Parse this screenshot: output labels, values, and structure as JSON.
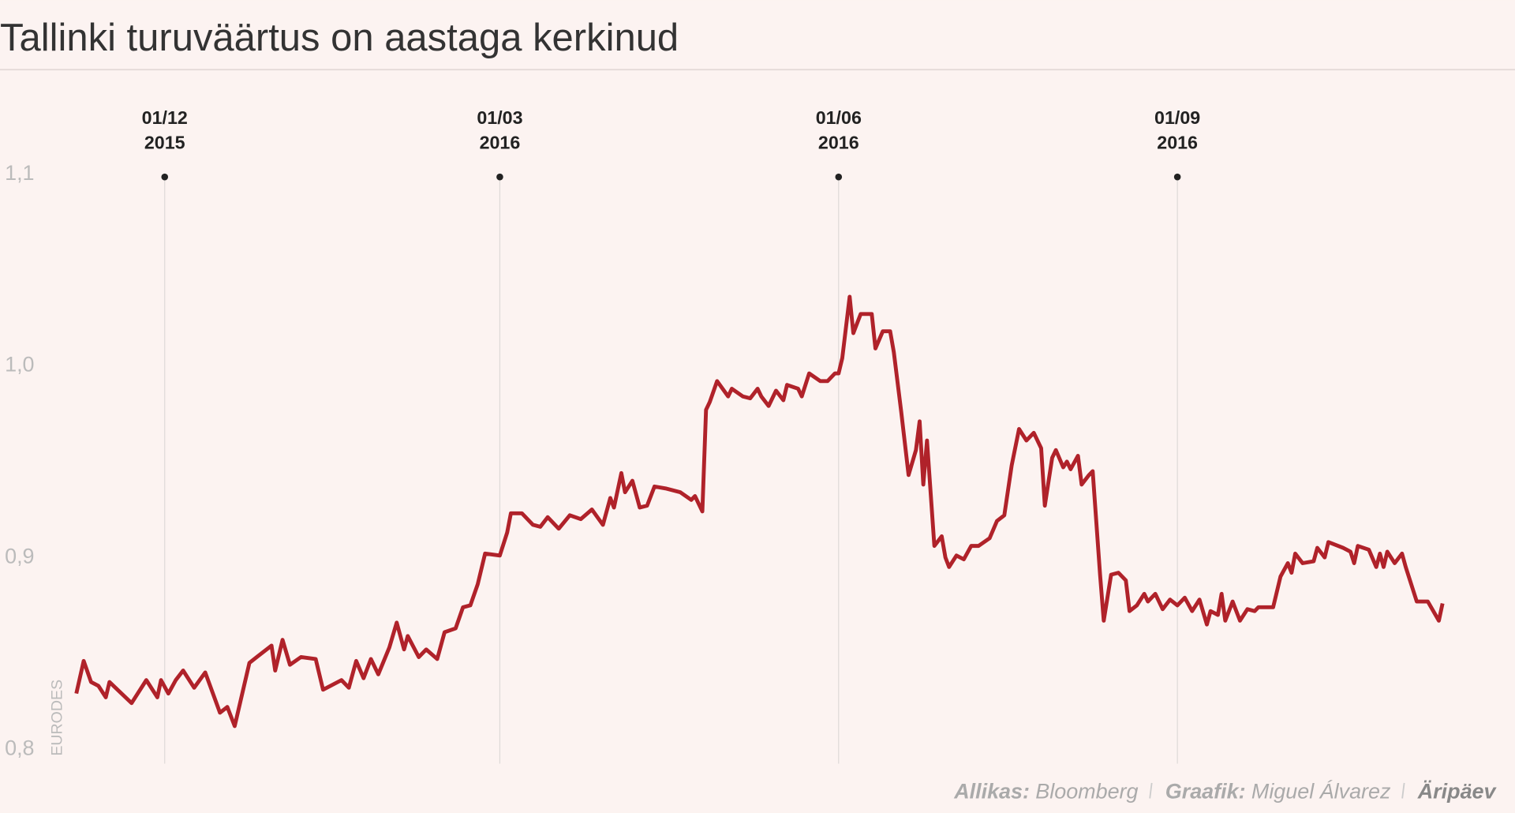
{
  "chart_data": {
    "type": "line",
    "title": "Tallinki turuväärtus on aastaga kerkinud",
    "y_label": "EURODES",
    "color": "#b0222a",
    "x": [
      "2015-11-07",
      "2015-11-09",
      "2015-11-11",
      "2015-11-13",
      "2015-11-15",
      "2015-11-16",
      "2015-11-22",
      "2015-11-26",
      "2015-11-29",
      "2015-11-30",
      "2015-12-02",
      "2015-12-04",
      "2015-12-06",
      "2015-12-09",
      "2015-12-12",
      "2015-12-16",
      "2015-12-18",
      "2015-12-20",
      "2015-12-24",
      "2015-12-26",
      "2015-12-30",
      "2015-12-31",
      "2016-01-02",
      "2016-01-04",
      "2016-01-07",
      "2016-01-11",
      "2016-01-13",
      "2016-01-18",
      "2016-01-20",
      "2016-01-22",
      "2016-01-24",
      "2016-01-26",
      "2016-01-28",
      "2016-01-31",
      "2016-02-02",
      "2016-02-04",
      "2016-02-05",
      "2016-02-08",
      "2016-02-10",
      "2016-02-13",
      "2016-02-15",
      "2016-02-18",
      "2016-02-20",
      "2016-02-22",
      "2016-02-24",
      "2016-02-26",
      "2016-03-01",
      "2016-03-03",
      "2016-03-04",
      "2016-03-07",
      "2016-03-10",
      "2016-03-12",
      "2016-03-14",
      "2016-03-17",
      "2016-03-20",
      "2016-03-23",
      "2016-03-26",
      "2016-03-29",
      "2016-03-31",
      "2016-04-01",
      "2016-04-03",
      "2016-04-04",
      "2016-04-06",
      "2016-04-08",
      "2016-04-10",
      "2016-04-12",
      "2016-04-15",
      "2016-04-19",
      "2016-04-22",
      "2016-04-23",
      "2016-04-25",
      "2016-04-26",
      "2016-04-27",
      "2016-04-29",
      "2016-05-02",
      "2016-05-03",
      "2016-05-06",
      "2016-05-08",
      "2016-05-10",
      "2016-05-11",
      "2016-05-13",
      "2016-05-15",
      "2016-05-17",
      "2016-05-18",
      "2016-05-21",
      "2016-05-22",
      "2016-05-24",
      "2016-05-27",
      "2016-05-29",
      "2016-05-31",
      "2016-06-01",
      "2016-06-02",
      "2016-06-04",
      "2016-06-05",
      "2016-06-07",
      "2016-06-10",
      "2016-06-11",
      "2016-06-13",
      "2016-06-15",
      "2016-06-16",
      "2016-06-18",
      "2016-06-20",
      "2016-06-22",
      "2016-06-23",
      "2016-06-24",
      "2016-06-25",
      "2016-06-27",
      "2016-06-29",
      "2016-06-30",
      "2016-07-01",
      "2016-07-03",
      "2016-07-05",
      "2016-07-07",
      "2016-07-09",
      "2016-07-12",
      "2016-07-14",
      "2016-07-16",
      "2016-07-18",
      "2016-07-20",
      "2016-07-22",
      "2016-07-24",
      "2016-07-26",
      "2016-07-27",
      "2016-07-29",
      "2016-07-30",
      "2016-08-01",
      "2016-08-02",
      "2016-08-03",
      "2016-08-05",
      "2016-08-06",
      "2016-08-08",
      "2016-08-09",
      "2016-08-11",
      "2016-08-12",
      "2016-08-14",
      "2016-08-16",
      "2016-08-18",
      "2016-08-19",
      "2016-08-21",
      "2016-08-23",
      "2016-08-24",
      "2016-08-26",
      "2016-08-28",
      "2016-08-30",
      "2016-09-01",
      "2016-09-03",
      "2016-09-05",
      "2016-09-07",
      "2016-09-09",
      "2016-09-10",
      "2016-09-12",
      "2016-09-13",
      "2016-09-14",
      "2016-09-16",
      "2016-09-18",
      "2016-09-20",
      "2016-09-22",
      "2016-09-23",
      "2016-09-27",
      "2016-09-29",
      "2016-10-01",
      "2016-10-02",
      "2016-10-03",
      "2016-10-05",
      "2016-10-08",
      "2016-10-09",
      "2016-10-11",
      "2016-10-12",
      "2016-10-16",
      "2016-10-18",
      "2016-10-19",
      "2016-10-20",
      "2016-10-23",
      "2016-10-25",
      "2016-10-26",
      "2016-10-27",
      "2016-10-28",
      "2016-10-30",
      "2016-11-01",
      "2016-11-02",
      "2016-11-05",
      "2016-11-08",
      "2016-11-11",
      "2016-11-12"
    ],
    "values": [
      0.828,
      0.845,
      0.834,
      0.832,
      0.826,
      0.834,
      0.823,
      0.835,
      0.826,
      0.835,
      0.828,
      0.835,
      0.84,
      0.831,
      0.839,
      0.818,
      0.821,
      0.811,
      0.844,
      0.847,
      0.853,
      0.84,
      0.856,
      0.843,
      0.847,
      0.846,
      0.83,
      0.835,
      0.831,
      0.845,
      0.836,
      0.846,
      0.838,
      0.852,
      0.865,
      0.851,
      0.858,
      0.847,
      0.851,
      0.846,
      0.86,
      0.862,
      0.873,
      0.874,
      0.885,
      0.901,
      0.9,
      0.912,
      0.922,
      0.922,
      0.916,
      0.915,
      0.92,
      0.914,
      0.921,
      0.919,
      0.924,
      0.916,
      0.93,
      0.925,
      0.943,
      0.933,
      0.939,
      0.925,
      0.926,
      0.936,
      0.935,
      0.933,
      0.929,
      0.931,
      0.923,
      0.976,
      0.98,
      0.991,
      0.983,
      0.987,
      0.983,
      0.982,
      0.987,
      0.983,
      0.978,
      0.986,
      0.981,
      0.989,
      0.987,
      0.983,
      0.995,
      0.991,
      0.991,
      0.995,
      0.995,
      1.003,
      1.035,
      1.016,
      1.026,
      1.026,
      1.008,
      1.017,
      1.017,
      1.006,
      0.975,
      0.942,
      0.955,
      0.97,
      0.937,
      0.96,
      0.905,
      0.91,
      0.899,
      0.894,
      0.9,
      0.898,
      0.905,
      0.905,
      0.909,
      0.918,
      0.921,
      0.947,
      0.966,
      0.96,
      0.964,
      0.956,
      0.926,
      0.951,
      0.955,
      0.946,
      0.949,
      0.945,
      0.952,
      0.937,
      0.942,
      0.944,
      0.89,
      0.866,
      0.89,
      0.891,
      0.887,
      0.871,
      0.874,
      0.88,
      0.876,
      0.88,
      0.872,
      0.877,
      0.874,
      0.878,
      0.871,
      0.877,
      0.864,
      0.871,
      0.869,
      0.88,
      0.866,
      0.876,
      0.866,
      0.872,
      0.871,
      0.873,
      0.873,
      0.889,
      0.896,
      0.891,
      0.901,
      0.896,
      0.897,
      0.904,
      0.899,
      0.907,
      0.904,
      0.902,
      0.896,
      0.905,
      0.903,
      0.894,
      0.901,
      0.894,
      0.902,
      0.896,
      0.901,
      0.894,
      0.876,
      0.876,
      0.866,
      0.875
    ],
    "xlim": [
      "2015-11-07",
      "2016-11-12"
    ],
    "xticks": [
      {
        "value": "2015-12-01",
        "label": [
          "01/12",
          "2015"
        ]
      },
      {
        "value": "2016-03-01",
        "label": [
          "01/03",
          "2016"
        ]
      },
      {
        "value": "2016-06-01",
        "label": [
          "01/06",
          "2016"
        ]
      },
      {
        "value": "2016-09-01",
        "label": [
          "01/09",
          "2016"
        ]
      }
    ],
    "ylim": [
      0.8,
      1.1
    ],
    "yticks": [
      {
        "value": 0.8,
        "label": "0,8"
      },
      {
        "value": 0.9,
        "label": "0,9"
      },
      {
        "value": 1.0,
        "label": "1,0"
      },
      {
        "value": 1.1,
        "label": "1,1"
      }
    ],
    "source": {
      "label": "Allikas:",
      "text": "Bloomberg"
    },
    "credit": {
      "label": "Graafik:",
      "text": "Miguel Álvarez"
    },
    "brand": "Äripäev"
  }
}
